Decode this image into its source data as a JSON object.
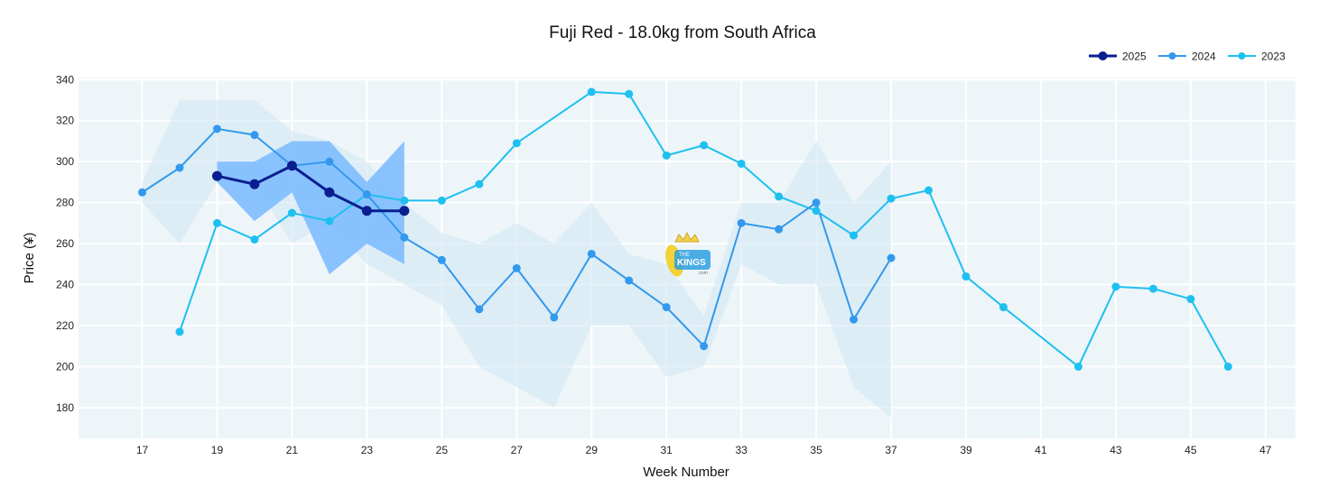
{
  "chart_data": {
    "type": "line",
    "title": "Fuji Red - 18.0kg from South Africa",
    "xlabel": "Week Number",
    "ylabel": "Price (¥)",
    "xlim": [
      15.3,
      47.8
    ],
    "ylim": [
      165,
      341
    ],
    "x_ticks": [
      17,
      19,
      21,
      23,
      25,
      27,
      29,
      31,
      33,
      35,
      37,
      39,
      41,
      43,
      45,
      47
    ],
    "y_ticks": [
      180,
      200,
      220,
      240,
      260,
      280,
      300,
      320,
      340
    ],
    "grid": true,
    "legend_position": "top-right",
    "series": [
      {
        "name": "2025",
        "color": "#0a1f8f",
        "points": [
          [
            19,
            293
          ],
          [
            20,
            289
          ],
          [
            21,
            298
          ],
          [
            22,
            285
          ],
          [
            23,
            276
          ],
          [
            24,
            276
          ]
        ],
        "band_upper": [
          [
            19,
            300
          ],
          [
            20,
            300
          ],
          [
            21,
            310
          ],
          [
            22,
            310
          ],
          [
            23,
            290
          ],
          [
            24,
            310
          ]
        ],
        "band_lower": [
          [
            19,
            290
          ],
          [
            20,
            271
          ],
          [
            21,
            285
          ],
          [
            22,
            245
          ],
          [
            23,
            260
          ],
          [
            24,
            250
          ]
        ],
        "band_color": "#7ebcff"
      },
      {
        "name": "2024",
        "color": "#3399ee",
        "points": [
          [
            17,
            285
          ],
          [
            18,
            297
          ],
          [
            19,
            316
          ],
          [
            20,
            313
          ],
          [
            21,
            298
          ],
          [
            22,
            300
          ],
          [
            23,
            284
          ],
          [
            24,
            263
          ],
          [
            25,
            252
          ],
          [
            26,
            228
          ],
          [
            27,
            248
          ],
          [
            28,
            224
          ],
          [
            29,
            255
          ],
          [
            30,
            242
          ],
          [
            31,
            229
          ],
          [
            32,
            210
          ],
          [
            33,
            270
          ],
          [
            34,
            267
          ],
          [
            35,
            280
          ],
          [
            36,
            223
          ],
          [
            37,
            253
          ]
        ],
        "band_upper": [
          [
            17,
            290
          ],
          [
            18,
            330
          ],
          [
            19,
            330
          ],
          [
            20,
            330
          ],
          [
            21,
            315
          ],
          [
            22,
            310
          ],
          [
            23,
            300
          ],
          [
            24,
            280
          ],
          [
            25,
            265
          ],
          [
            26,
            260
          ],
          [
            27,
            270
          ],
          [
            28,
            260
          ],
          [
            29,
            280
          ],
          [
            30,
            255
          ],
          [
            31,
            250
          ],
          [
            32,
            225
          ],
          [
            33,
            280
          ],
          [
            34,
            280
          ],
          [
            35,
            310
          ],
          [
            36,
            280
          ],
          [
            37,
            300
          ]
        ],
        "band_lower": [
          [
            17,
            280
          ],
          [
            18,
            260
          ],
          [
            19,
            290
          ],
          [
            20,
            290
          ],
          [
            21,
            260
          ],
          [
            22,
            270
          ],
          [
            23,
            250
          ],
          [
            24,
            240
          ],
          [
            25,
            230
          ],
          [
            26,
            200
          ],
          [
            27,
            190
          ],
          [
            28,
            180
          ],
          [
            29,
            220
          ],
          [
            30,
            220
          ],
          [
            31,
            195
          ],
          [
            32,
            200
          ],
          [
            33,
            250
          ],
          [
            34,
            240
          ],
          [
            35,
            240
          ],
          [
            36,
            190
          ],
          [
            37,
            175
          ]
        ],
        "band_color": "#cfe6f2"
      },
      {
        "name": "2023",
        "color": "#1ec0f0",
        "points": [
          [
            18,
            217
          ],
          [
            19,
            270
          ],
          [
            20,
            262
          ],
          [
            21,
            275
          ],
          [
            22,
            271
          ],
          [
            23,
            284
          ],
          [
            24,
            281
          ],
          [
            25,
            281
          ],
          [
            26,
            289
          ],
          [
            27,
            309
          ],
          [
            29,
            334
          ],
          [
            30,
            333
          ],
          [
            31,
            303
          ],
          [
            32,
            308
          ],
          [
            33,
            299
          ],
          [
            34,
            283
          ],
          [
            35,
            276
          ],
          [
            36,
            264
          ],
          [
            37,
            282
          ],
          [
            38,
            286
          ],
          [
            39,
            244
          ],
          [
            40,
            229
          ],
          [
            42,
            200
          ],
          [
            43,
            239
          ],
          [
            44,
            238
          ],
          [
            45,
            233
          ],
          [
            46,
            200
          ]
        ]
      }
    ]
  },
  "colors": {
    "plot_background": "#edf5f9",
    "grid": "#ffffff"
  },
  "watermark": {
    "text_top": "THE",
    "text_main": "KINGS",
    "text_small": ".com"
  }
}
